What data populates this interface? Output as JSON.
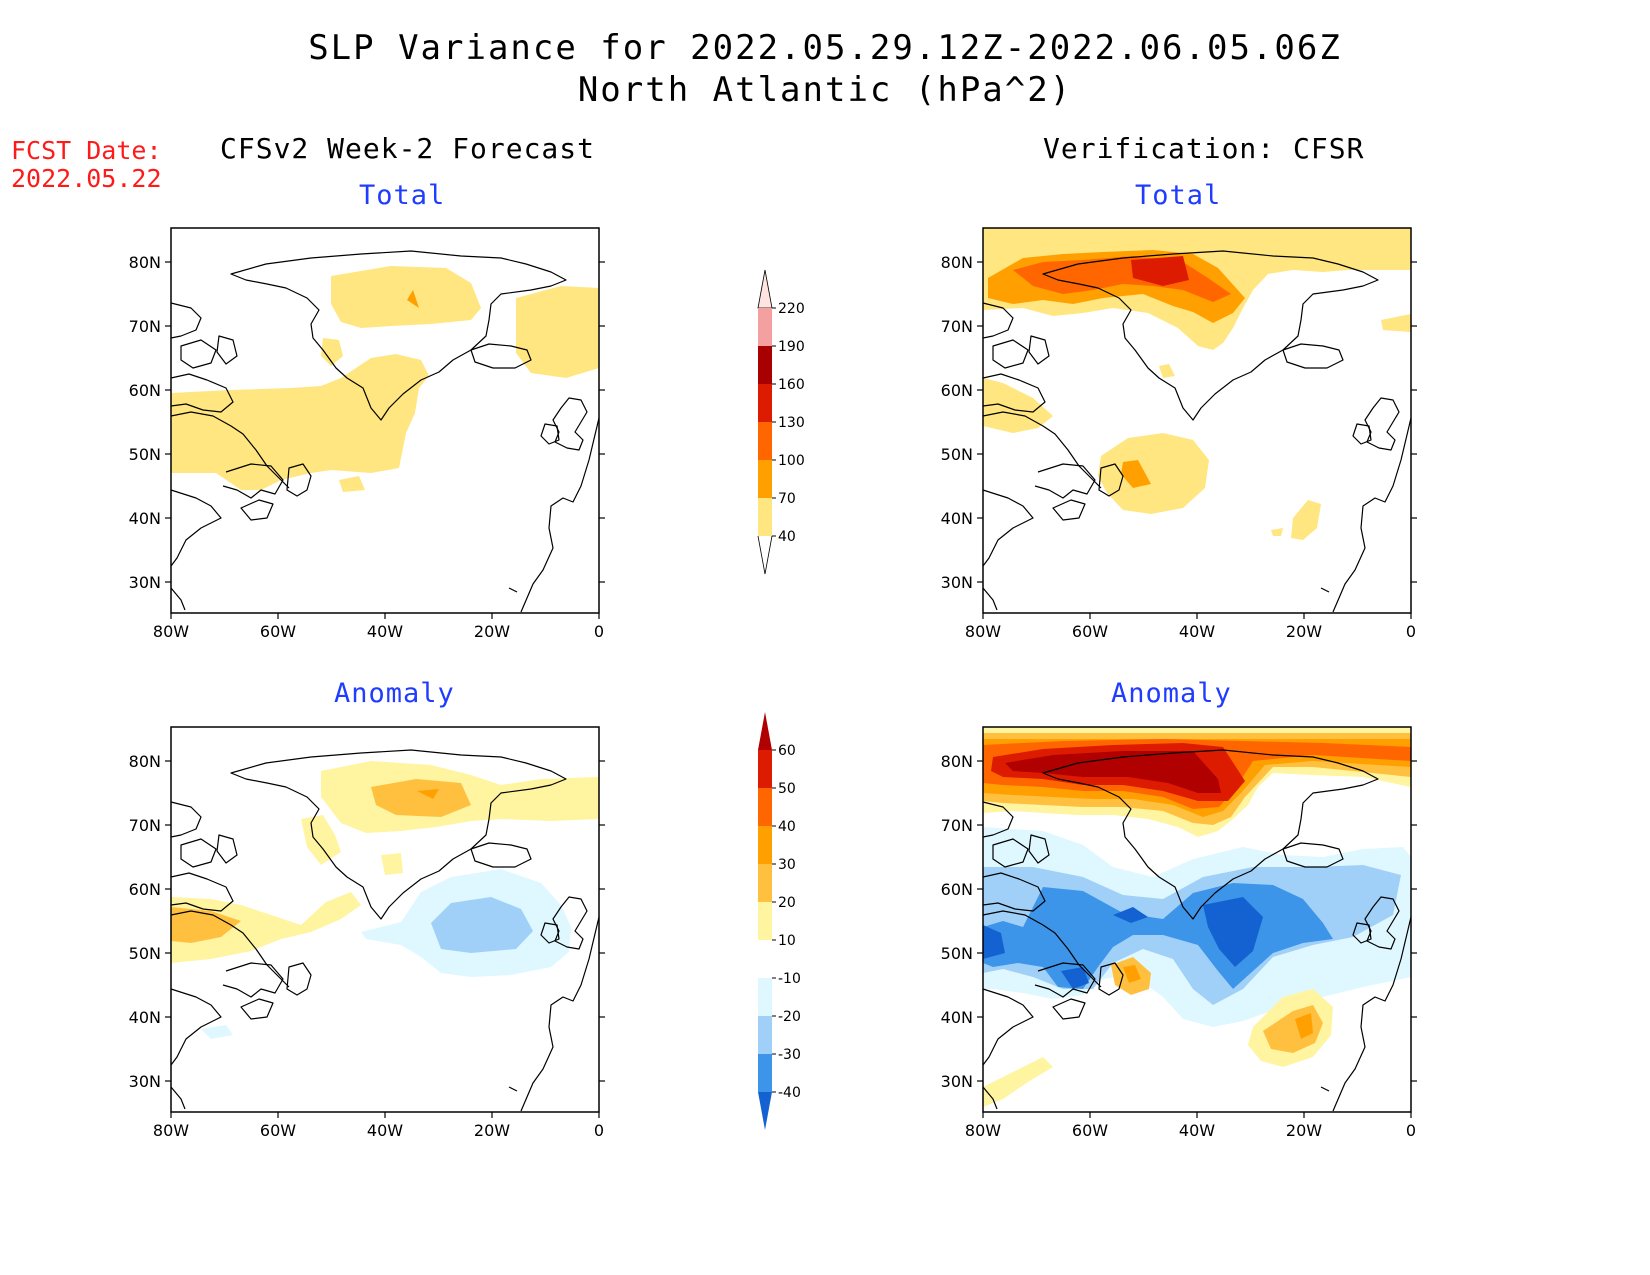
{
  "title": {
    "line1": "SLP Variance for 2022.05.29.12Z-2022.06.05.06Z",
    "line2": "North Atlantic (hPa^2)"
  },
  "fcst_date": {
    "label": "FCST Date:",
    "value": "2022.05.22"
  },
  "columns": {
    "left": "CFSv2 Week-2 Forecast",
    "right": "Verification: CFSR"
  },
  "panels": {
    "total_label": "Total",
    "anomaly_label": "Anomaly"
  },
  "axes": {
    "lat_ticks": [
      "80N",
      "70N",
      "60N",
      "50N",
      "40N",
      "30N"
    ],
    "lon_ticks": [
      "80W",
      "60W",
      "40W",
      "20W",
      "0"
    ]
  },
  "colorbars": {
    "total": {
      "levels": [
        "220",
        "190",
        "160",
        "130",
        "100",
        "70",
        "40"
      ],
      "colors": [
        "#ffe4e1",
        "#f4a0a0",
        "#a80000",
        "#dd1b00",
        "#ff6600",
        "#ffa000",
        "#ffe680"
      ]
    },
    "anomaly": {
      "levels": [
        "60",
        "50",
        "40",
        "30",
        "20",
        "10",
        "-10",
        "-20",
        "-30",
        "-40"
      ],
      "colors": [
        "#b10000",
        "#dd1b00",
        "#ff6600",
        "#ffa000",
        "#ffc040",
        "#fff4a0",
        "#ffffff",
        "#dff8ff",
        "#a0d0f8",
        "#3c95e8",
        "#1462d2"
      ]
    }
  }
}
